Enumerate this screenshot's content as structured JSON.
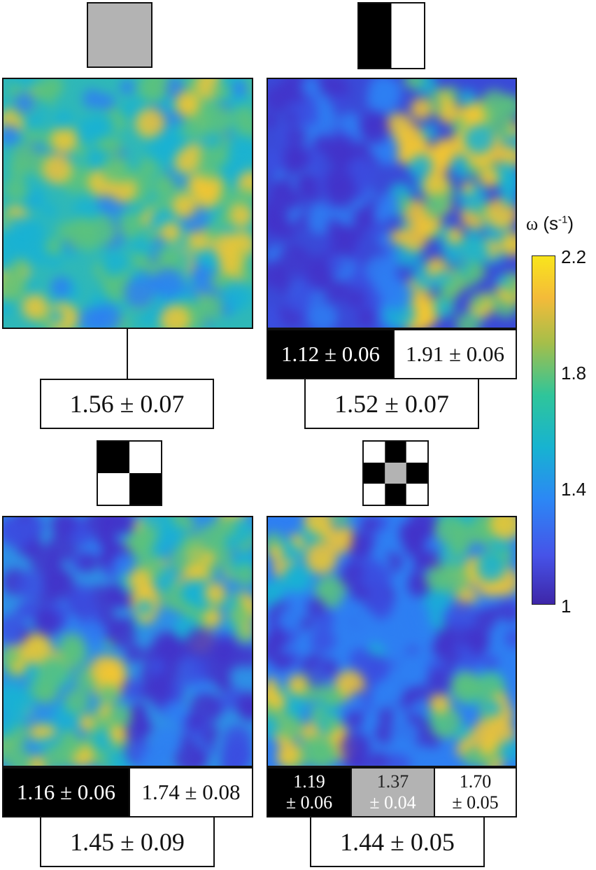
{
  "panels": [
    {
      "id": "uniform",
      "pattern": "uniform-gray",
      "mean": "1.56 ± 0.07",
      "regions": []
    },
    {
      "id": "halves",
      "pattern": "two-halves-black-white",
      "mean": "1.52 ± 0.07",
      "regions": [
        {
          "color": "black",
          "value": "1.12 ± 0.06"
        },
        {
          "color": "white",
          "value": "1.91 ± 0.06"
        }
      ]
    },
    {
      "id": "checker",
      "pattern": "2x2-checkerboard",
      "mean": "1.45 ± 0.09",
      "regions": [
        {
          "color": "black",
          "value": "1.16 ± 0.06"
        },
        {
          "color": "white",
          "value": "1.74 ± 0.08"
        }
      ]
    },
    {
      "id": "cross",
      "pattern": "3x3-checkerboard-gray-center",
      "mean": "1.44 ± 0.05",
      "regions": [
        {
          "color": "black",
          "value_line1": "1.19",
          "value_line2": "± 0.06"
        },
        {
          "color": "gray",
          "value_line1": "1.37",
          "value_line2": "± 0.04"
        },
        {
          "color": "white",
          "value_line1": "1.70",
          "value_line2": "± 0.05"
        }
      ]
    }
  ],
  "colorbar": {
    "symbol": "ω",
    "unit_base": "(s",
    "unit_sup": "-1",
    "unit_close": ")",
    "min": 1,
    "max": 2.2,
    "ticks": [
      "2.2",
      "1.8",
      "1.4",
      "1"
    ],
    "colormap": "parula",
    "colors": [
      "#3e26a8",
      "#4653e8",
      "#2c87f5",
      "#17b3d1",
      "#2fc59a",
      "#a5be4a",
      "#f4bb39",
      "#f9e51c"
    ]
  }
}
